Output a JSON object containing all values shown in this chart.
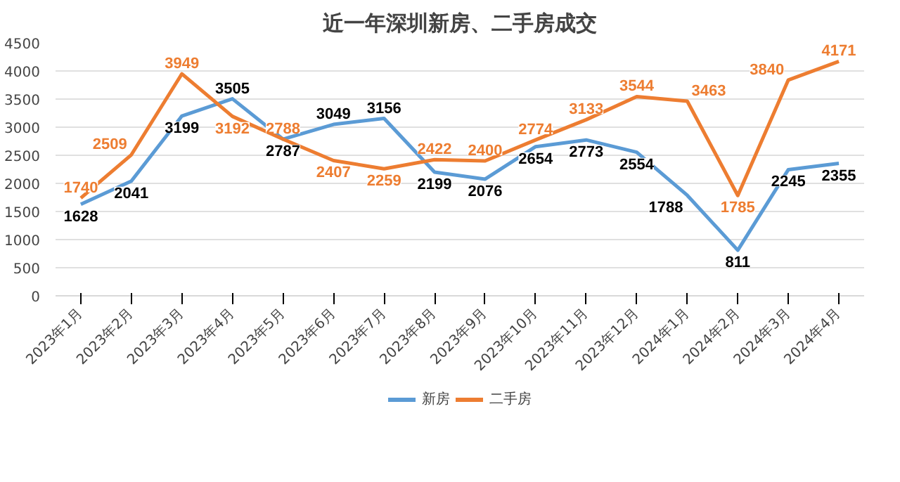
{
  "chart_data": {
    "type": "line",
    "title": "近一年深圳新房、二手房成交",
    "categories": [
      "2023年1月",
      "2023年2月",
      "2023年3月",
      "2023年4月",
      "2023年5月",
      "2023年6月",
      "2023年7月",
      "2023年8月",
      "2023年9月",
      "2023年10月",
      "2023年11月",
      "2023年12月",
      "2024年1月",
      "2024年2月",
      "2024年3月",
      "2024年4月"
    ],
    "series": [
      {
        "name": "新房",
        "color": "#5b9bd5",
        "values": [
          1628,
          2041,
          3199,
          3505,
          2787,
          3049,
          3156,
          2199,
          2076,
          2654,
          2773,
          2554,
          1788,
          811,
          2245,
          2355
        ]
      },
      {
        "name": "二手房",
        "color": "#ed7d31",
        "values": [
          1740,
          2509,
          3949,
          3192,
          2788,
          2407,
          2259,
          2422,
          2400,
          2774,
          3133,
          3544,
          3463,
          1785,
          3840,
          4171
        ]
      }
    ],
    "ylim": [
      0,
      4500
    ],
    "yticks": [
      0,
      500,
      1000,
      1500,
      2000,
      2500,
      3000,
      3500,
      4000,
      4500
    ],
    "grid": "y",
    "legend": "bottom",
    "data_labels": true,
    "marker": "none",
    "line_style": "solid"
  }
}
